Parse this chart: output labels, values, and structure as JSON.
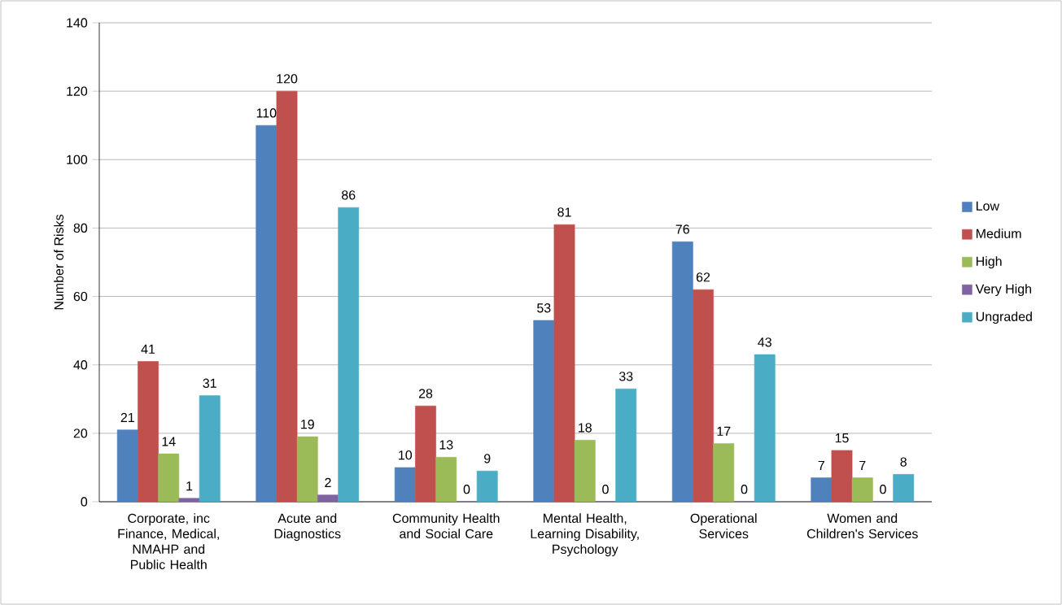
{
  "chart_data": {
    "type": "bar",
    "ylabel": "Number of Risks",
    "categories": [
      "Corporate, inc Finance, Medical, NMAHP and Public Health",
      "Acute and Diagnostics",
      "Community Health and Social Care",
      "Mental Health, Learning Disability, Psychology",
      "Operational Services",
      "Women and Children's Services"
    ],
    "series": [
      {
        "name": "Low",
        "color": "#4f81bd",
        "values": [
          21,
          110,
          10,
          53,
          76,
          7
        ]
      },
      {
        "name": "Medium",
        "color": "#c0504d",
        "values": [
          41,
          120,
          28,
          81,
          62,
          15
        ]
      },
      {
        "name": "High",
        "color": "#9bbb59",
        "values": [
          14,
          19,
          13,
          18,
          17,
          7
        ]
      },
      {
        "name": "Very High",
        "color": "#8064a2",
        "values": [
          1,
          2,
          0,
          0,
          0,
          0
        ]
      },
      {
        "name": "Ungraded",
        "color": "#4bacc6",
        "values": [
          31,
          86,
          9,
          33,
          43,
          8
        ]
      }
    ],
    "ylim": [
      0,
      140
    ],
    "yticks": [
      0,
      20,
      40,
      60,
      80,
      100,
      120,
      140
    ],
    "grid": "y",
    "legend": "right",
    "data_labels": true
  }
}
